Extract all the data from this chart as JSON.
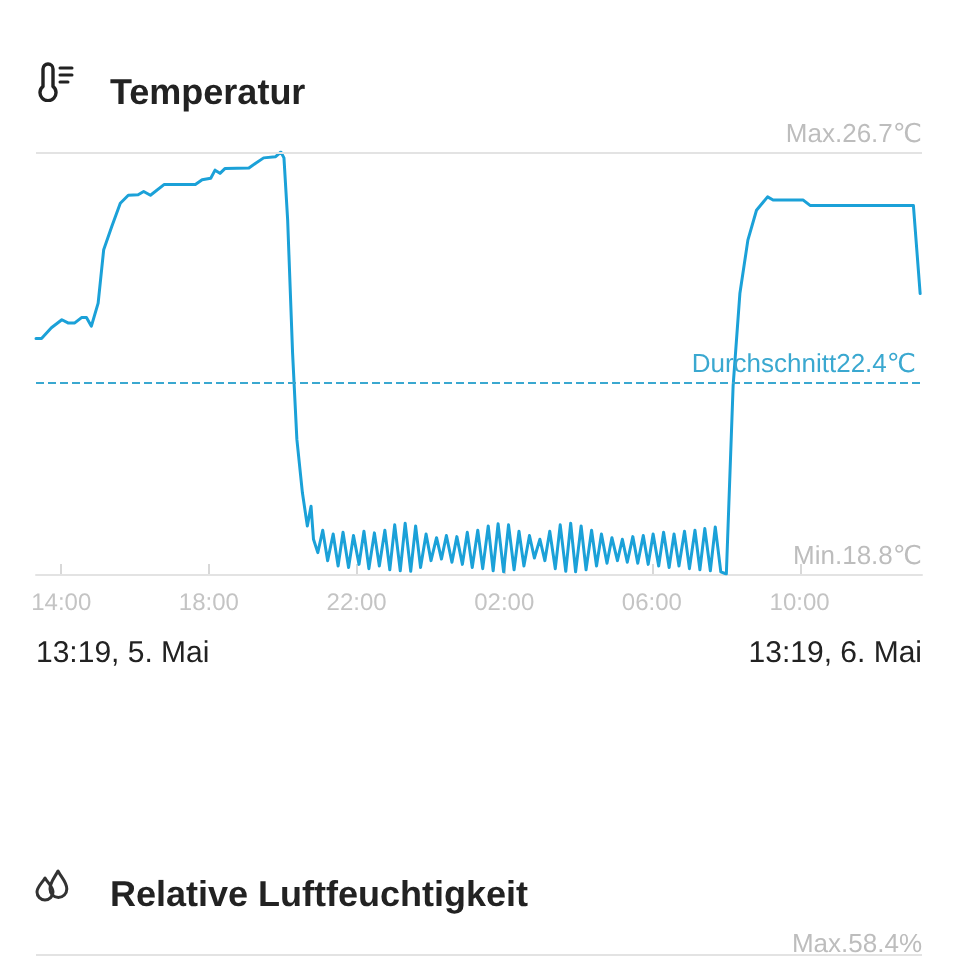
{
  "chart_data": [
    {
      "type": "line",
      "title": "Temperatur",
      "color": "#1ba1d8",
      "x": [
        "--05-05T13:19",
        "--05-05T13:28",
        "--05-05T13:44",
        "--05-05T14:01",
        "--05-05T14:11",
        "--05-05T14:22",
        "--05-05T14:33",
        "--05-05T14:41",
        "--05-05T14:49",
        "--05-05T15:00",
        "--05-05T15:09",
        "--05-05T15:22",
        "--05-05T15:36",
        "--05-05T15:49",
        "--05-05T16:05",
        "--05-05T16:14",
        "--05-05T16:25",
        "--05-05T16:47",
        "--05-05T17:11",
        "--05-05T17:38",
        "--05-05T17:49",
        "--05-05T18:03",
        "--05-05T18:10",
        "--05-05T18:18",
        "--05-05T18:26",
        "--05-05T19:05",
        "--05-05T19:16",
        "--05-05T19:29",
        "--05-05T19:48",
        "--05-05T19:57",
        "--05-05T20:02",
        "--05-05T20:08",
        "--05-05T20:16",
        "--05-05T20:23",
        "--05-05T20:32",
        "--05-05T20:40",
        "--05-05T20:46",
        "--05-05T20:50",
        "--05-05T20:57",
        "--05-05T21:05",
        "--05-05T21:13",
        "--05-05T21:22",
        "--05-05T21:30",
        "--05-05T21:38",
        "--05-05T21:47",
        "--05-05T21:55",
        "--05-05T22:04",
        "--05-05T22:12",
        "--05-05T22:20",
        "--05-05T22:29",
        "--05-05T22:37",
        "--05-05T22:46",
        "--05-05T22:54",
        "--05-05T23:02",
        "--05-05T23:11",
        "--05-05T23:19",
        "--05-05T23:28",
        "--05-05T23:36",
        "--05-05T23:44",
        "--05-05T23:53",
        "--05-06T00:01",
        "--05-06T00:10",
        "--05-06T00:18",
        "--05-06T00:26",
        "--05-06T00:35",
        "--05-06T00:43",
        "--05-06T00:52",
        "--05-06T01:00",
        "--05-06T01:08",
        "--05-06T01:17",
        "--05-06T01:25",
        "--05-06T01:34",
        "--05-06T01:42",
        "--05-06T01:50",
        "--05-06T01:59",
        "--05-06T02:07",
        "--05-06T02:16",
        "--05-06T02:24",
        "--05-06T02:32",
        "--05-06T02:41",
        "--05-06T02:49",
        "--05-06T02:58",
        "--05-06T03:06",
        "--05-06T03:14",
        "--05-06T03:23",
        "--05-06T03:31",
        "--05-06T03:40",
        "--05-06T03:48",
        "--05-06T03:56",
        "--05-06T04:05",
        "--05-06T04:13",
        "--05-06T04:22",
        "--05-06T04:30",
        "--05-06T04:38",
        "--05-06T04:47",
        "--05-06T04:55",
        "--05-06T05:04",
        "--05-06T05:12",
        "--05-06T05:20",
        "--05-06T05:29",
        "--05-06T05:37",
        "--05-06T05:46",
        "--05-06T05:54",
        "--05-06T06:02",
        "--05-06T06:11",
        "--05-06T06:19",
        "--05-06T06:28",
        "--05-06T06:36",
        "--05-06T06:44",
        "--05-06T06:53",
        "--05-06T07:01",
        "--05-06T07:10",
        "--05-06T07:18",
        "--05-06T07:26",
        "--05-06T07:35",
        "--05-06T07:43",
        "--05-06T07:52",
        "--05-06T08:01",
        "--05-06T08:12",
        "--05-06T08:23",
        "--05-06T08:36",
        "--05-06T08:50",
        "--05-06T09:08",
        "--05-06T09:17",
        "--05-06T10:06",
        "--05-06T10:17",
        "--05-06T13:05",
        "--05-06T13:16"
      ],
      "values": [
        23.21,
        23.21,
        23.41,
        23.56,
        23.5,
        23.5,
        23.6,
        23.6,
        23.44,
        23.87,
        24.87,
        25.3,
        25.74,
        25.89,
        25.9,
        25.96,
        25.89,
        26.09,
        26.09,
        26.09,
        26.18,
        26.21,
        26.36,
        26.3,
        26.39,
        26.4,
        26.49,
        26.59,
        26.61,
        26.7,
        26.59,
        25.43,
        22.94,
        21.32,
        20.32,
        19.7,
        20.07,
        19.45,
        19.2,
        19.62,
        19.05,
        19.55,
        18.95,
        19.58,
        18.92,
        19.52,
        18.98,
        19.6,
        18.9,
        19.57,
        18.95,
        19.62,
        18.88,
        19.72,
        18.86,
        19.75,
        18.85,
        19.7,
        18.92,
        19.55,
        19.05,
        19.48,
        19.08,
        19.52,
        19.02,
        19.5,
        18.98,
        19.58,
        18.92,
        19.62,
        18.9,
        19.7,
        18.86,
        19.74,
        18.84,
        19.72,
        18.88,
        19.6,
        18.95,
        19.52,
        19.1,
        19.45,
        19.05,
        19.6,
        18.9,
        19.72,
        18.85,
        19.75,
        18.84,
        19.7,
        18.88,
        19.62,
        18.95,
        19.55,
        19.0,
        19.48,
        19.05,
        19.45,
        19.02,
        19.5,
        19.0,
        19.52,
        18.98,
        19.55,
        18.95,
        19.58,
        18.92,
        19.55,
        18.95,
        19.6,
        18.9,
        19.62,
        18.88,
        19.65,
        18.86,
        19.68,
        18.84,
        18.8,
        22.32,
        24.05,
        25.05,
        25.61,
        25.86,
        25.8,
        25.8,
        25.7,
        25.7,
        24.05
      ],
      "xlim": [
        "--05-05T13:19",
        "--05-06T13:19"
      ],
      "xticks": [
        {
          "value": "--05-05T14:00",
          "label": "14:00"
        },
        {
          "value": "--05-05T18:00",
          "label": "18:00"
        },
        {
          "value": "--05-05T22:00",
          "label": "22:00"
        },
        {
          "value": "--05-06T02:00",
          "label": "02:00"
        },
        {
          "value": "--05-06T06:00",
          "label": "06:00"
        },
        {
          "value": "--05-06T10:00",
          "label": "10:00"
        }
      ],
      "ylim": [
        18.8,
        26.7
      ],
      "yticks": [
        {
          "value": 18.8,
          "label": "18.8℃"
        },
        {
          "value": 26.7,
          "label": "26.7℃"
        }
      ],
      "ref_lines": [
        {
          "axis": "y",
          "value": 26.7,
          "color": "#e3e3e3"
        },
        {
          "axis": "y",
          "value": 22.4,
          "label": "Durchschnitt22.4℃",
          "color": "#3aa8d0",
          "line_style": "dashed"
        }
      ],
      "annotations": [
        "13:19, 5. Mai",
        "13:19, 6. Mai",
        "Max.",
        "Min."
      ]
    },
    {
      "type": "other",
      "title": "Relative Luftfeuchtigkeit",
      "annotations": [
        "Max.58.4%"
      ]
    }
  ]
}
